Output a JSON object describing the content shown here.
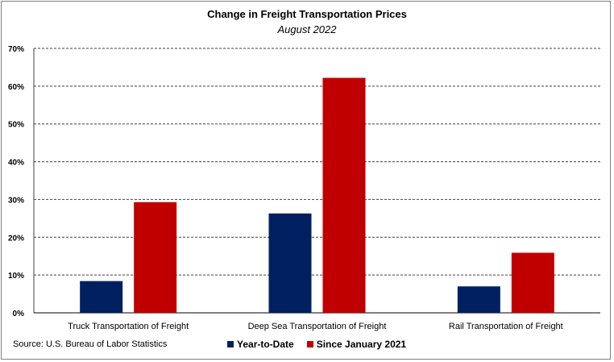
{
  "chart_data": {
    "type": "bar",
    "title": "Change in Freight Transportation Prices",
    "subtitle": "August 2022",
    "categories": [
      "Truck Transportation of Freight",
      "Deep Sea Transportation of Freight",
      "Rail Transportation of Freight"
    ],
    "series": [
      {
        "name": "Year-to-Date",
        "color": "#002060",
        "values": [
          8.4,
          26.3,
          7.0
        ]
      },
      {
        "name": "Since January 2021",
        "color": "#C00000",
        "values": [
          29.3,
          62.2,
          15.9
        ]
      }
    ],
    "xlabel": "",
    "ylabel": "",
    "ylim": [
      0,
      70
    ],
    "yticks": [
      0,
      10,
      20,
      30,
      40,
      50,
      60,
      70
    ],
    "ytick_labels": [
      "0%",
      "10%",
      "20%",
      "30%",
      "40%",
      "50%",
      "60%",
      "70%"
    ],
    "grid": true,
    "legend_position": "bottom",
    "source": "Source: U.S. Bureau of Labor Statistics"
  }
}
